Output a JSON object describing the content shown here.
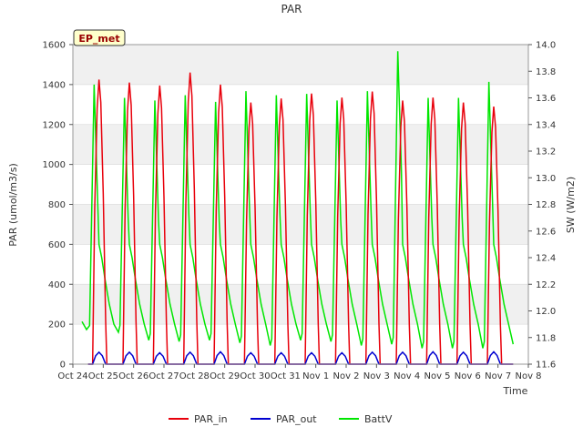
{
  "chart_data": {
    "type": "line",
    "title": "PAR",
    "xlabel": "Time",
    "ylabel_left": "PAR (umol/m3/s)",
    "ylabel_right": "SW (W/m2)",
    "site_badge": "EP_met",
    "x_ticks": [
      "Oct 24",
      "Oct 25",
      "Oct 26",
      "Oct 27",
      "Oct 28",
      "Oct 29",
      "Oct 30",
      "Oct 31",
      "Nov 1",
      "Nov 2",
      "Nov 3",
      "Nov 4",
      "Nov 5",
      "Nov 6",
      "Nov 7",
      "Nov 8"
    ],
    "xlim_days": [
      0,
      15
    ],
    "y_left": {
      "ylim": [
        0,
        1600
      ],
      "ticks": [
        0,
        200,
        400,
        600,
        800,
        1000,
        1200,
        1400,
        1600
      ]
    },
    "y_right": {
      "ylim": [
        11.6,
        14.0
      ],
      "ticks": [
        11.6,
        11.8,
        12.0,
        12.2,
        12.4,
        12.6,
        12.8,
        13.0,
        13.2,
        13.4,
        13.6,
        13.8,
        14.0
      ]
    },
    "grid": "horizontal bands",
    "legend_position": "bottom",
    "series": [
      {
        "name": "PAR_in",
        "axis": "left",
        "color": "#e8000b",
        "daily_peaks": [
          1425,
          1410,
          1395,
          1460,
          1400,
          1310,
          1330,
          1355,
          1335,
          1365,
          1320,
          1335,
          1310,
          1290
        ]
      },
      {
        "name": "PAR_out",
        "axis": "left",
        "color": "#0000d0",
        "daily_peaks": [
          60,
          60,
          57,
          60,
          62,
          57,
          57,
          57,
          57,
          60,
          60,
          62,
          60,
          62
        ]
      },
      {
        "name": "BattV",
        "axis": "right",
        "color": "#00e600",
        "daily_peaks": [
          13.7,
          13.6,
          13.58,
          13.62,
          13.57,
          13.65,
          13.62,
          13.63,
          13.58,
          13.65,
          13.95,
          13.6,
          13.6,
          13.72
        ],
        "daily_lows": [
          11.84,
          11.78,
          11.77,
          11.78,
          11.76,
          11.74,
          11.78,
          11.77,
          11.74,
          11.75,
          11.72,
          11.72,
          11.72,
          11.75
        ]
      }
    ]
  }
}
